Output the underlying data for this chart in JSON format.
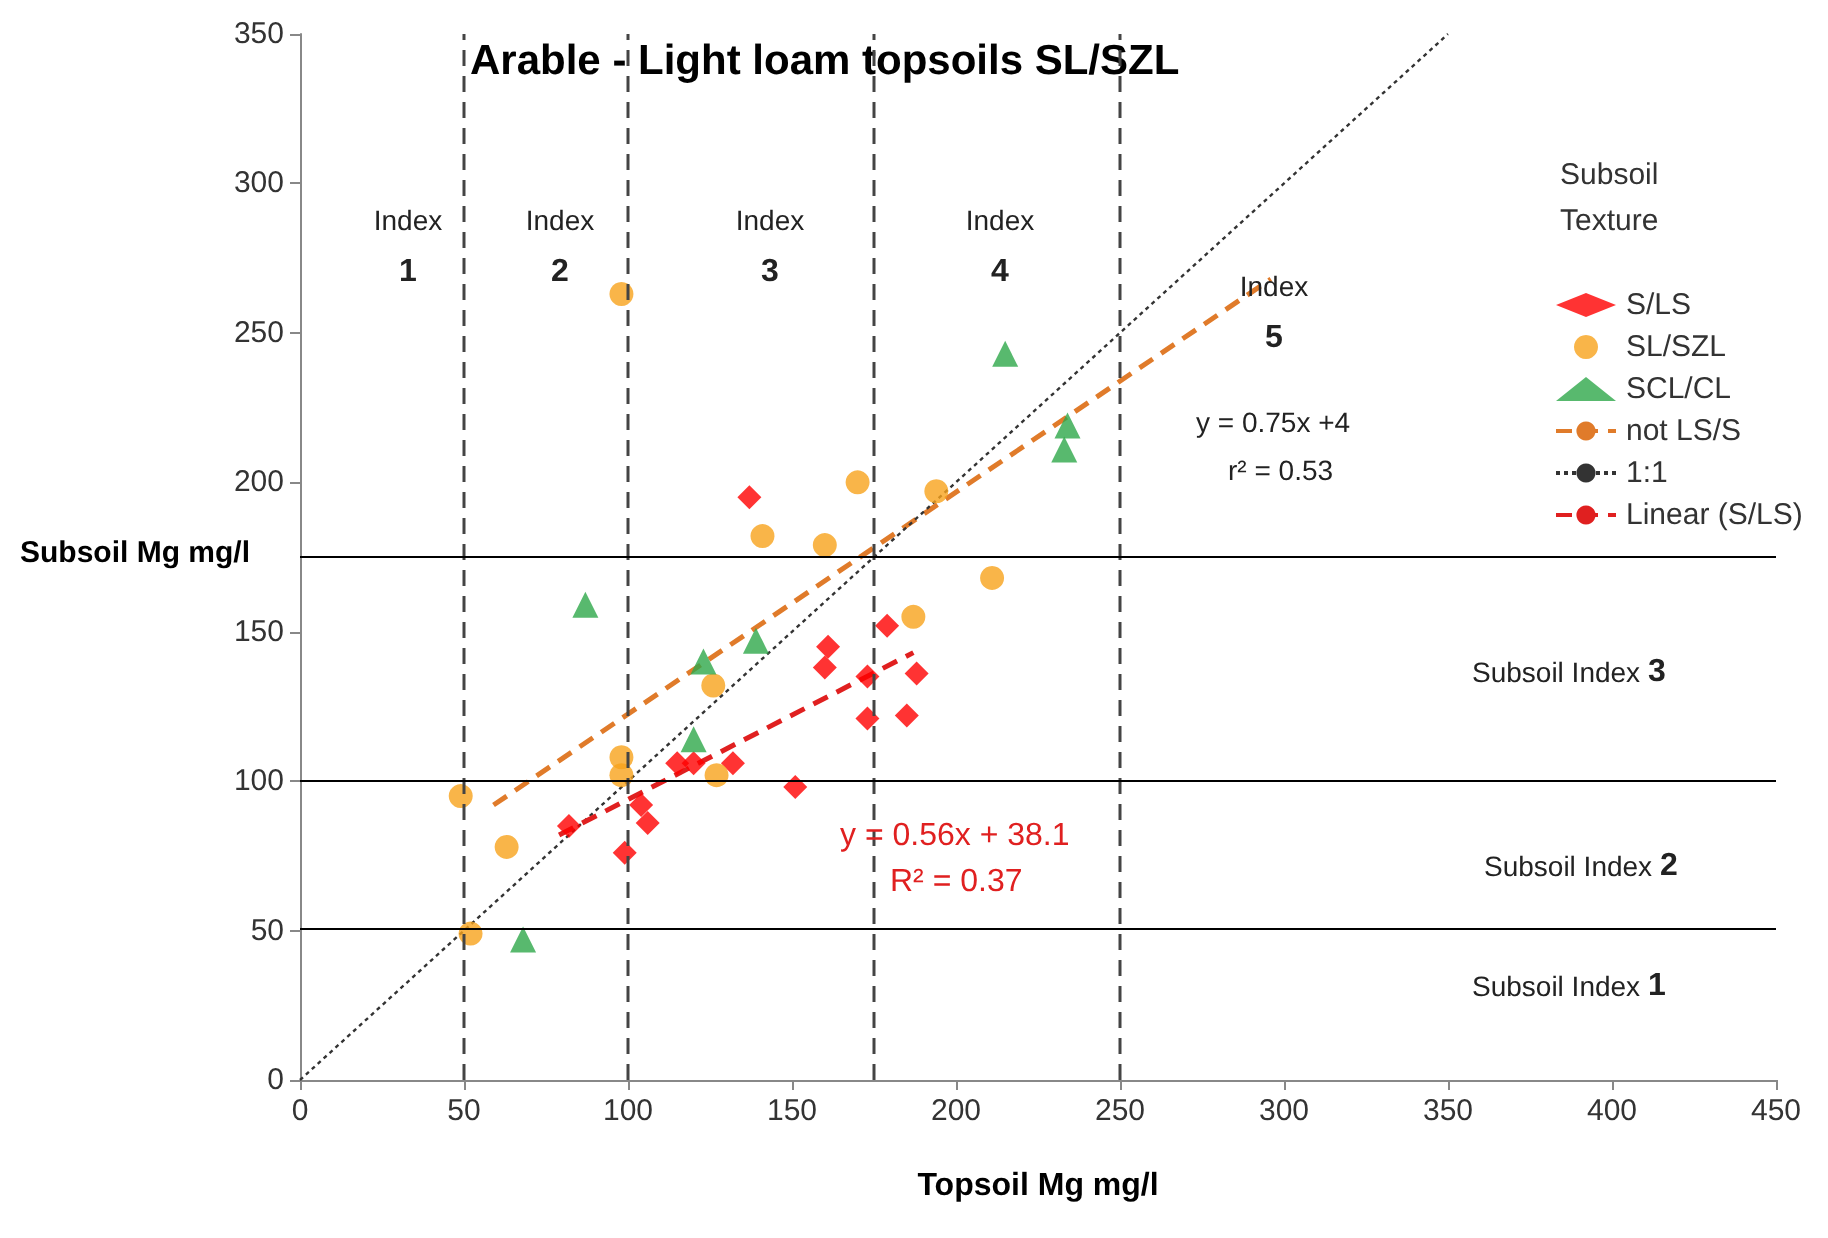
{
  "chart_data": {
    "type": "scatter",
    "title": "Arable - Light loam topsoils SL/SZL",
    "xlabel": "Topsoil Mg mg/l",
    "ylabel": "Subsoil Mg mg/l",
    "legend_title": "Subsoil Texture",
    "xlim": [
      0,
      450
    ],
    "xticks": [
      0,
      50,
      100,
      150,
      200,
      250,
      300,
      350,
      400,
      450
    ],
    "ylim": [
      0,
      350
    ],
    "yticks": [
      0,
      50,
      100,
      150,
      200,
      250,
      300,
      350
    ],
    "grid": false,
    "legend": "right",
    "series": [
      {
        "name": "S/LS",
        "color": "#ff0000",
        "marker": "diamond",
        "x": [
          137,
          82,
          99,
          104,
          106,
          115,
          120,
          132,
          151,
          161,
          160,
          173,
          173,
          179,
          188,
          185
        ],
        "values": [
          195,
          85,
          76,
          92,
          86,
          106,
          106,
          106,
          98,
          145,
          138,
          135,
          121,
          152,
          136,
          122
        ]
      },
      {
        "name": "SL/SZL",
        "color": "#f7a21b",
        "marker": "circle",
        "x": [
          49,
          63,
          52,
          98,
          98,
          127,
          126,
          98,
          141,
          160,
          170,
          194,
          211,
          187
        ],
        "values": [
          95,
          78,
          49,
          108,
          102,
          102,
          132,
          263,
          182,
          179,
          200,
          197,
          168,
          155
        ]
      },
      {
        "name": "SCL/CL",
        "color": "#2ea84a",
        "marker": "triangle",
        "x": [
          68,
          87,
          120,
          123,
          139,
          215,
          234,
          233
        ],
        "values": [
          47,
          159,
          114,
          140,
          147,
          243,
          219,
          211
        ]
      },
      {
        "name": "not LS/S",
        "type": "line",
        "color": "#e07b2a",
        "marker": "none",
        "line_style": "dashed",
        "x": [
          59,
          296
        ],
        "values": [
          92,
          268
        ]
      },
      {
        "name": "1:1",
        "type": "line",
        "color": "#333333",
        "marker": "none",
        "line_style": "dotted",
        "x": [
          0,
          350
        ],
        "values": [
          0,
          350
        ]
      },
      {
        "name": "Linear (S/LS)",
        "type": "line",
        "color": "#e02020",
        "marker": "none",
        "line_style": "dashed",
        "x": [
          79,
          187
        ],
        "values": [
          82,
          143
        ]
      }
    ],
    "ref_lines": [
      {
        "axis": "x",
        "value": 50,
        "color": "#444444",
        "line_style": "dashed"
      },
      {
        "axis": "x",
        "value": 100,
        "color": "#444444",
        "line_style": "dashed"
      },
      {
        "axis": "x",
        "value": 175,
        "color": "#444444",
        "line_style": "dashed"
      },
      {
        "axis": "x",
        "value": 250,
        "color": "#444444",
        "line_style": "dashed"
      },
      {
        "axis": "y",
        "value": 51,
        "color": "#000000",
        "line_style": "solid"
      },
      {
        "axis": "y",
        "value": 100,
        "color": "#000000",
        "line_style": "solid"
      },
      {
        "axis": "y",
        "value": 175,
        "color": "#000000",
        "line_style": "solid"
      }
    ],
    "annotations": [
      "Index 1",
      "Index 2",
      "Index 3",
      "Index 4",
      "Index 5",
      "y = 0.75x +4",
      "r² = 0.53",
      "y = 0.56x + 38.1",
      "R² = 0.37",
      "Subsoil Index 3",
      "Subsoil Index 2",
      "Subsoil Index 1"
    ]
  }
}
